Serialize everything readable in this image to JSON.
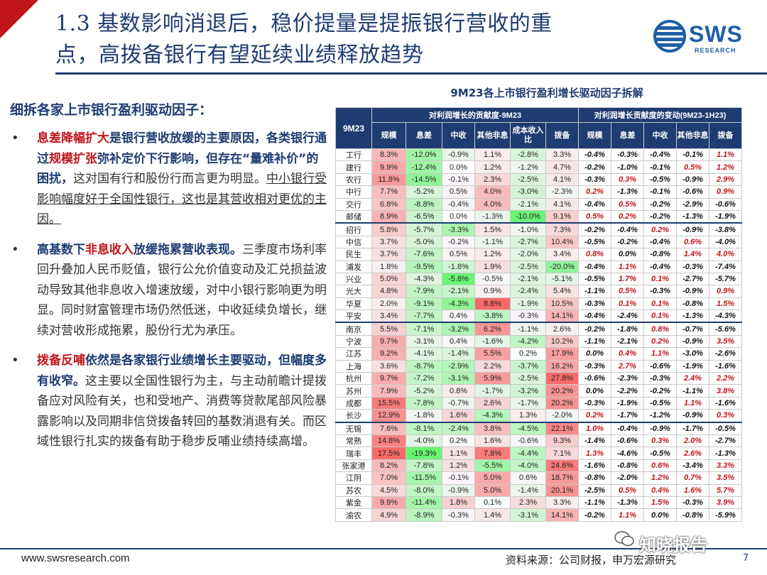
{
  "header": {
    "title_line1": "1.3 基数影响消退后，稳价提量是提振银行营收的重",
    "title_line2": "点，高拨备银行有望延续业绩释放趋势",
    "logo_text": "SWS",
    "logo_sub": "RESEARCH",
    "colors": {
      "accent_red": "#c0151b",
      "navy": "#1e3c72",
      "logo_blue": "#1f5ea8"
    }
  },
  "left": {
    "heading": "细拆各家上市银行盈利驱动因子：",
    "b1": {
      "s1": "息差降幅扩大",
      "s2": "是银行营收放缓的主要原因，各类银行通过",
      "s3": "规模扩张",
      "s4": "弥补定价下行影响，但存在“量难补价”的困扰，",
      "s5": "这对国有行和股份行而言更为明显。",
      "s6": "中小银行受影响幅度好于全国性银行，这也是其营收相对更优的主因。"
    },
    "b2": {
      "s1": "高基数下",
      "s2": "非息收入",
      "s3": "放缓拖累营收表现。",
      "s4": "三季度市场利率回升叠加人民币贬值，银行公允价值变动及汇兑损益波动导致其他非息收入增速放缓，对中小银行影响更为明显。同时财富管理市场仍然低迷，中收延续负增长，继续对营收形成拖累，股份行尤为承压。"
    },
    "b3": {
      "s1": "拨备反哺",
      "s2": "依然是各家银行业绩增长主要驱动，但幅度多有收窄。",
      "s3": "这主要以全国性银行为主，与主动前瞻计提拨备应对风险有关，也和受地产、消费等贷款尾部风险暴露影响以及同期非信贷拨备转回的基数消退有关。而区域性银行扎实的拨备有助于稳步反哺业绩持续高增。"
    }
  },
  "chart": {
    "title": "9M23各上市银行盈利增长驱动因子拆解",
    "corner": "9M23",
    "group1": "对利润增长的贡献度-9M23",
    "group2": "对利润增长贡献度的变动(9M23-1H23)",
    "cols1": [
      "规模",
      "息差",
      "中收",
      "其他非息",
      "成本收入比",
      "拨备"
    ],
    "cols2": [
      "规模",
      "息差",
      "中收",
      "其他非息",
      "拨备"
    ]
  },
  "chart_data": {
    "type": "table",
    "title": "9M23各上市银行盈利增长驱动因子拆解",
    "banks": [
      "工行",
      "建行",
      "农行",
      "中行",
      "交行",
      "邮储",
      "招行",
      "中信",
      "民生",
      "浦发",
      "兴业",
      "光大",
      "华夏",
      "平安",
      "南京",
      "宁波",
      "江苏",
      "上海",
      "杭州",
      "苏州",
      "成都",
      "长沙",
      "无锡",
      "常熟",
      "瑞丰",
      "张家港",
      "江阴",
      "苏农",
      "紫金",
      "渝农"
    ],
    "contribution_9M23": [
      [
        "8.3%",
        "-12.0%",
        "-0.9%",
        "1.1%",
        "-2.8%",
        "3.3%"
      ],
      [
        "9.9%",
        "-12.4%",
        "0.0%",
        "1.2%",
        "-1.2%",
        "4.7%"
      ],
      [
        "11.8%",
        "-14.5%",
        "-0.1%",
        "2.3%",
        "-2.5%",
        "4.1%"
      ],
      [
        "7.7%",
        "-5.2%",
        "0.5%",
        "4.0%",
        "-3.0%",
        "-2.3%"
      ],
      [
        "6.8%",
        "-8.8%",
        "-0.4%",
        "4.0%",
        "-2.1%",
        "4.1%"
      ],
      [
        "8.9%",
        "-6.5%",
        "0.0%",
        "-1.3%",
        "-10.0%",
        "9.1%"
      ],
      [
        "5.8%",
        "-5.7%",
        "-3.3%",
        "1.5%",
        "-1.0%",
        "7.3%"
      ],
      [
        "3.7%",
        "-5.0%",
        "-0.2%",
        "-1.1%",
        "-2.7%",
        "10.4%"
      ],
      [
        "3.7%",
        "-7.6%",
        "0.5%",
        "1.2%",
        "-2.0%",
        "3.4%"
      ],
      [
        "1.8%",
        "-9.5%",
        "-1.8%",
        "1.9%",
        "-2.5%",
        "-20.0%"
      ],
      [
        "5.0%",
        "-4.3%",
        "-5.8%",
        "-0.5%",
        "-2.1%",
        "-5.1%"
      ],
      [
        "4.8%",
        "-7.9%",
        "-2.1%",
        "0.9%",
        "-2.4%",
        "5.4%"
      ],
      [
        "2.0%",
        "-9.1%",
        "-4.3%",
        "8.8%",
        "-1.9%",
        "10.5%"
      ],
      [
        "3.4%",
        "-7.7%",
        "0.4%",
        "-3.8%",
        "-0.3%",
        "14.1%"
      ],
      [
        "5.5%",
        "-7.1%",
        "-3.2%",
        "6.2%",
        "-1.1%",
        "2.6%"
      ],
      [
        "9.7%",
        "-3.1%",
        "0.4%",
        "-1.6%",
        "-4.2%",
        "10.2%"
      ],
      [
        "9.2%",
        "-4.1%",
        "-1.4%",
        "5.5%",
        "0.2%",
        "17.9%"
      ],
      [
        "3.6%",
        "-8.7%",
        "-2.9%",
        "2.2%",
        "-3.7%",
        "16.2%"
      ],
      [
        "9.7%",
        "-7.2%",
        "-3.1%",
        "5.9%",
        "-2.5%",
        "27.8%"
      ],
      [
        "7.9%",
        "-5.2%",
        "0.8%",
        "-1.7%",
        "-3.2%",
        "20.2%"
      ],
      [
        "15.5%",
        "-7.8%",
        "-0.7%",
        "2.6%",
        "-1.7%",
        "20.2%"
      ],
      [
        "12.9%",
        "-1.8%",
        "1.6%",
        "-4.3%",
        "1.3%",
        "-2.0%"
      ],
      [
        "7.6%",
        "-8.1%",
        "-2.4%",
        "3.8%",
        "-4.5%",
        "22.1%"
      ],
      [
        "14.8%",
        "-4.0%",
        "0.2%",
        "1.6%",
        "-0.6%",
        "9.3%"
      ],
      [
        "17.5%",
        "-19.3%",
        "1.1%",
        "7.8%",
        "-4.4%",
        "7.1%"
      ],
      [
        "8.2%",
        "-7.8%",
        "1.2%",
        "-5.5%",
        "-4.0%",
        "24.6%"
      ],
      [
        "7.0%",
        "-11.5%",
        "-0.1%",
        "5.0%",
        "0.6%",
        "18.7%"
      ],
      [
        "4.5%",
        "-8.0%",
        "-0.9%",
        "5.0%",
        "-1.4%",
        "20.1%"
      ],
      [
        "9.9%",
        "-11.4%",
        "1.8%",
        "0.1%",
        "2.3%",
        "3.3%"
      ],
      [
        "4.9%",
        "-8.9%",
        "-0.3%",
        "1.4%",
        "-3.1%",
        "14.1%"
      ]
    ],
    "change_9M23_vs_1H23": [
      [
        "-0.4%",
        "-0.3%",
        "-0.4%",
        "-0.1%",
        "1.1%"
      ],
      [
        "-0.2%",
        "-1.0%",
        "-0.1%",
        "0.5%",
        "1.2%"
      ],
      [
        "-0.3%",
        "0.3%",
        "-0.5%",
        "-0.9%",
        "2.9%"
      ],
      [
        "0.2%",
        "-1.3%",
        "-0.1%",
        "-0.6%",
        "0.9%"
      ],
      [
        "-0.4%",
        "0.5%",
        "-0.2%",
        "-2.9%",
        "-0.6%"
      ],
      [
        "0.5%",
        "0.2%",
        "-0.2%",
        "-1.3%",
        "-1.9%"
      ],
      [
        "-0.2%",
        "-0.4%",
        "0.2%",
        "-0.9%",
        "-3.8%"
      ],
      [
        "-0.5%",
        "-0.2%",
        "-0.4%",
        "0.6%",
        "-4.0%"
      ],
      [
        "0.8%",
        "0.0%",
        "-0.8%",
        "1.4%",
        "4.0%"
      ],
      [
        "-0.4%",
        "1.1%",
        "-0.4%",
        "-0.3%",
        "-7.4%"
      ],
      [
        "-0.5%",
        "1.7%",
        "0.1%",
        "-2.7%",
        "-5.7%"
      ],
      [
        "-1.1%",
        "0.5%",
        "-0.3%",
        "-0.9%",
        "0.9%"
      ],
      [
        "-0.3%",
        "0.1%",
        "0.1%",
        "-0.8%",
        "1.5%"
      ],
      [
        "-0.4%",
        "-2.4%",
        "0.1%",
        "-1.3%",
        "-4.3%"
      ],
      [
        "-0.2%",
        "-1.8%",
        "0.8%",
        "-0.7%",
        "-5.6%"
      ],
      [
        "-1.1%",
        "-2.1%",
        "0.2%",
        "-0.9%",
        "3.5%"
      ],
      [
        "0.0%",
        "0.4%",
        "1.1%",
        "-3.0%",
        "-2.6%"
      ],
      [
        "-0.3%",
        "2.7%",
        "-0.6%",
        "-1.9%",
        "-1.6%"
      ],
      [
        "-0.6%",
        "-2.3%",
        "-0.3%",
        "2.4%",
        "2.2%"
      ],
      [
        "0.0%",
        "-2.2%",
        "-0.2%",
        "-1.1%",
        "3.8%"
      ],
      [
        "-0.3%",
        "-1.9%",
        "-0.5%",
        "1.1%",
        "-1.6%"
      ],
      [
        "0.2%",
        "-1.7%",
        "-1.2%",
        "-0.9%",
        "0.3%"
      ],
      [
        "1.0%",
        "-0.4%",
        "-0.9%",
        "-1.7%",
        "-0.5%"
      ],
      [
        "-1.4%",
        "-0.6%",
        "0.3%",
        "2.0%",
        "-2.7%"
      ],
      [
        "1.3%",
        "-4.6%",
        "-0.5%",
        "2.6%",
        "-1.3%"
      ],
      [
        "-1.6%",
        "-0.8%",
        "0.6%",
        "-3.4%",
        "3.3%"
      ],
      [
        "-0.8%",
        "-2.0%",
        "1.2%",
        "0.7%",
        "3.5%"
      ],
      [
        "-2.5%",
        "0.5%",
        "0.4%",
        "1.6%",
        "5.7%"
      ],
      [
        "-1.1%",
        "-1.3%",
        "1.5%",
        "-0.3%",
        "3.9%"
      ],
      [
        "-0.2%",
        "1.1%",
        "0.0%",
        "-0.8%",
        "-5.9%"
      ]
    ],
    "group_starts": [
      6,
      14,
      22
    ]
  },
  "footer": {
    "url": "www.swsresearch.com",
    "source": "资料来源：公司财报，申万宏源研究",
    "page": "7",
    "watermark": "知晓报告"
  }
}
